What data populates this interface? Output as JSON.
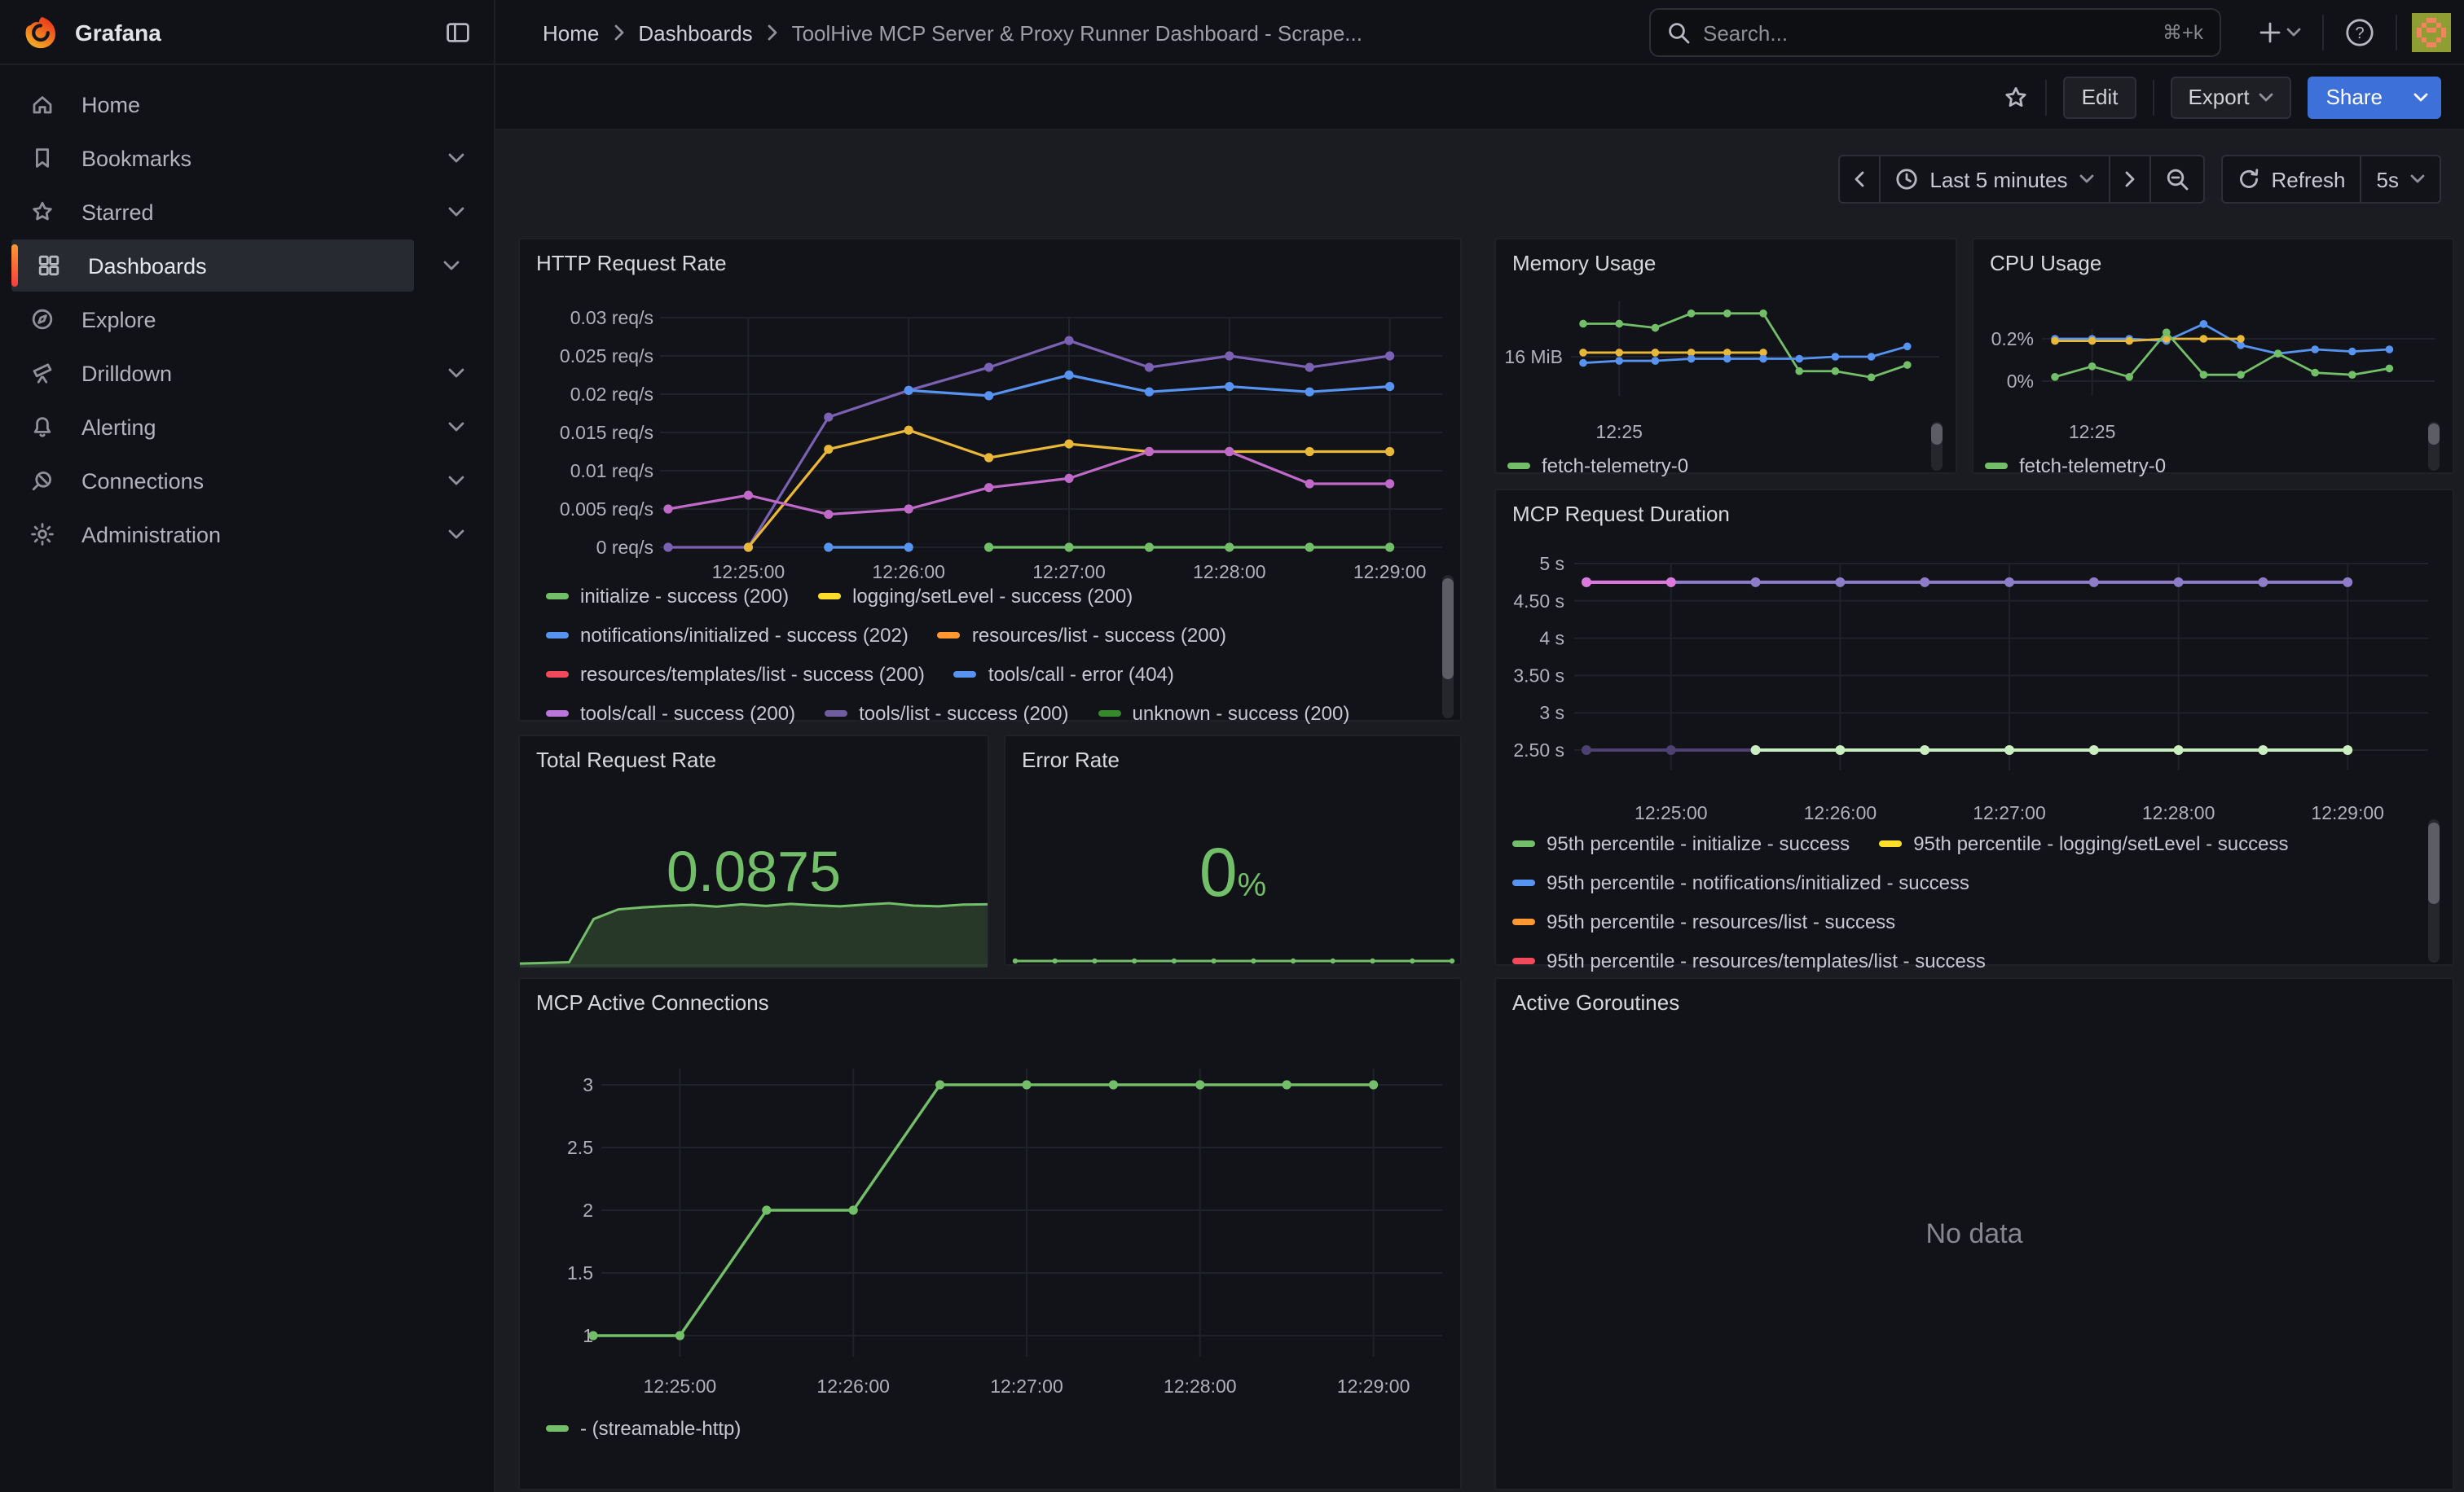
{
  "app": {
    "brand": "Grafana"
  },
  "breadcrumb": {
    "items": [
      "Home",
      "Dashboards",
      "ToolHive MCP Server & Proxy Runner Dashboard - Scrape..."
    ]
  },
  "search": {
    "placeholder": "Search...",
    "shortcut": "⌘+k"
  },
  "sidebar": {
    "items": [
      {
        "label": "Home",
        "expandable": false
      },
      {
        "label": "Bookmarks",
        "expandable": true
      },
      {
        "label": "Starred",
        "expandable": true
      },
      {
        "label": "Dashboards",
        "expandable": true,
        "active": true
      },
      {
        "label": "Explore",
        "expandable": false
      },
      {
        "label": "Drilldown",
        "expandable": true
      },
      {
        "label": "Alerting",
        "expandable": true
      },
      {
        "label": "Connections",
        "expandable": true
      },
      {
        "label": "Administration",
        "expandable": true
      }
    ]
  },
  "toolbar": {
    "edit": "Edit",
    "export": "Export",
    "share": "Share"
  },
  "timebar": {
    "range_label": "Last 5 minutes",
    "refresh_label": "Refresh",
    "interval": "5s"
  },
  "panels": {
    "http": "HTTP Request Rate",
    "memory": "Memory Usage",
    "cpu": "CPU Usage",
    "duration": "MCP Request Duration",
    "total": "Total Request Rate",
    "error": "Error Rate",
    "connections": "MCP Active Connections",
    "goroutines": "Active Goroutines",
    "no_data": "No data"
  },
  "stats": {
    "total_request_rate": "0.0875",
    "error_rate_value": "0",
    "error_rate_unit": "%"
  },
  "legends": {
    "http": {
      "rows": [
        [
          {
            "color": "#73BF69",
            "label": "initialize - success (200)"
          },
          {
            "color": "#FADE2A",
            "label": "logging/setLevel - success (200)"
          }
        ],
        [
          {
            "color": "#5794F2",
            "label": "notifications/initialized - success (202)"
          },
          {
            "color": "#FF9830",
            "label": "resources/list - success (200)"
          }
        ],
        [
          {
            "color": "#F2495C",
            "label": "resources/templates/list - success (200)"
          },
          {
            "color": "#5794F2",
            "label": "tools/call - error (404)"
          }
        ],
        [
          {
            "color": "#B877D9",
            "label": "tools/call - success (200)"
          },
          {
            "color": "#705DA0",
            "label": "tools/list - success (200)"
          },
          {
            "color": "#37872D",
            "label": "unknown - success (200)"
          }
        ]
      ]
    },
    "memory": {
      "rows": [
        [
          {
            "color": "#73BF69",
            "label": "fetch-telemetry-0"
          }
        ]
      ]
    },
    "cpu": {
      "rows": [
        [
          {
            "color": "#73BF69",
            "label": "fetch-telemetry-0"
          }
        ]
      ]
    },
    "duration": {
      "rows": [
        [
          {
            "color": "#73BF69",
            "label": "95th percentile - initialize - success"
          },
          {
            "color": "#FADE2A",
            "label": "95th percentile - logging/setLevel - success"
          }
        ],
        [
          {
            "color": "#5794F2",
            "label": "95th percentile - notifications/initialized - success"
          }
        ],
        [
          {
            "color": "#FF9830",
            "label": "95th percentile - resources/list - success"
          }
        ],
        [
          {
            "color": "#F2495C",
            "label": "95th percentile - resources/templates/list - success"
          }
        ]
      ]
    },
    "connections": {
      "rows": [
        [
          {
            "color": "#73BF69",
            "label": "- (streamable-http)"
          }
        ]
      ]
    }
  },
  "chart_data": [
    {
      "type": "line",
      "title": "HTTP Request Rate",
      "x_ticks": [
        "12:25:00",
        "12:26:00",
        "12:27:00",
        "12:28:00",
        "12:29:00"
      ],
      "y_ticks": [
        "0 req/s",
        "0.005 req/s",
        "0.01 req/s",
        "0.015 req/s",
        "0.02 req/s",
        "0.025 req/s",
        "0.03 req/s"
      ],
      "ylim": [
        0,
        0.03
      ],
      "x_start": "12:24:30",
      "x_step_seconds": 30,
      "ylabel": "req/s",
      "series": [
        {
          "label": "violet line",
          "color": "#7B61B3",
          "values": [
            0,
            0,
            0.017,
            0.0205,
            0.0235,
            0.027,
            0.0235,
            0.025,
            0.0235,
            0.025
          ]
        },
        {
          "label": "yellow line",
          "color": "#EAB839",
          "values": [
            null,
            0,
            0.0128,
            0.0153,
            0.0117,
            0.0135,
            0.0125,
            0.0125,
            0.0125,
            0.0125
          ]
        },
        {
          "label": "magenta line",
          "color": "#C069C9",
          "values": [
            0.005,
            0.0068,
            0.0043,
            0.005,
            0.0078,
            0.009,
            0.0125,
            0.0125,
            0.0083,
            0.0083
          ]
        },
        {
          "label": "blue line",
          "color": "#5794F2",
          "values": [
            null,
            null,
            null,
            0.0205,
            0.0198,
            0.0225,
            0.0203,
            0.021,
            0.0203,
            0.021
          ]
        },
        {
          "label": "blue zero points",
          "color": "#5794F2",
          "values": [
            null,
            null,
            0,
            0,
            null,
            null,
            null,
            null,
            null,
            null
          ]
        },
        {
          "label": "green zero line",
          "color": "#73BF69",
          "values": [
            null,
            null,
            null,
            null,
            0,
            0,
            0,
            0,
            0,
            0
          ]
        }
      ]
    },
    {
      "type": "line",
      "title": "Memory Usage",
      "unit": "MiB",
      "x_ticks": [
        "12:25"
      ],
      "y_ticks": [
        "16 MiB"
      ],
      "x_step_seconds": 30,
      "series": [
        {
          "label": "fetch-telemetry-0 (green)",
          "color": "#73BF69",
          "values": [
            17.6,
            17.6,
            17.4,
            18.1,
            18.1,
            18.1,
            15.3,
            15.3,
            15.0,
            15.6
          ]
        },
        {
          "label": "yellow line",
          "color": "#EAB839",
          "values": [
            16.2,
            16.2,
            16.2,
            16.2,
            16.2,
            16.2,
            null,
            null,
            null,
            null
          ]
        },
        {
          "label": "blue line",
          "color": "#5794F2",
          "values": [
            15.7,
            15.8,
            15.8,
            15.9,
            15.9,
            15.9,
            15.9,
            16.0,
            16.0,
            16.5
          ]
        }
      ]
    },
    {
      "type": "line",
      "title": "CPU Usage",
      "unit": "%",
      "x_ticks": [
        "12:25"
      ],
      "y_ticks": [
        "0.2%",
        "0%"
      ],
      "x_step_seconds": 30,
      "series": [
        {
          "label": "blue line",
          "color": "#5794F2",
          "values": [
            0.2,
            0.2,
            0.2,
            0.19,
            0.27,
            0.17,
            0.13,
            0.15,
            0.14,
            0.15
          ]
        },
        {
          "label": "yellow line",
          "color": "#EAB839",
          "values": [
            0.19,
            0.19,
            0.19,
            0.2,
            0.2,
            0.2,
            null,
            null,
            null,
            null
          ]
        },
        {
          "label": "fetch-telemetry-0 (green)",
          "color": "#73BF69",
          "values": [
            0.02,
            0.07,
            0.02,
            0.23,
            0.03,
            0.03,
            0.13,
            0.04,
            0.03,
            0.06
          ]
        }
      ]
    },
    {
      "type": "line",
      "title": "MCP Request Duration",
      "unit": "s",
      "x_ticks": [
        "12:25:00",
        "12:26:00",
        "12:27:00",
        "12:28:00",
        "12:29:00"
      ],
      "y_ticks": [
        "5 s",
        "4.50 s",
        "4 s",
        "3.50 s",
        "3 s",
        "2.50 s"
      ],
      "ylim": [
        2.5,
        5
      ],
      "x_start": "12:24:30",
      "x_step_seconds": 30,
      "series": [
        {
          "label": "95th percentile upper (purple)",
          "color": "#8E7CC9",
          "values": [
            4.75,
            4.75,
            4.75,
            4.75,
            4.75,
            4.75,
            4.75,
            4.75,
            4.75,
            4.75
          ]
        },
        {
          "label": "upper first segment (pink)",
          "color": "#DD79DD",
          "values": [
            4.75,
            4.75,
            null,
            null,
            null,
            null,
            null,
            null,
            null,
            null
          ]
        },
        {
          "label": "lower first segment (dark purple)",
          "color": "#4E4070",
          "values": [
            2.5,
            2.5,
            2.5,
            null,
            null,
            null,
            null,
            null,
            null,
            null
          ]
        },
        {
          "label": "95th percentile lower (light green)",
          "color": "#C9EFC0",
          "values": [
            null,
            null,
            2.5,
            2.5,
            2.5,
            2.5,
            2.5,
            2.5,
            2.5,
            2.5
          ]
        }
      ]
    },
    {
      "type": "area",
      "title": "Total Request Rate",
      "stat": "0.0875",
      "color": "#73BF69",
      "values": [
        0.001,
        0.002,
        0.003,
        0.066,
        0.08,
        0.083,
        0.085,
        0.0865,
        0.084,
        0.0875,
        0.085,
        0.088,
        0.086,
        0.0845,
        0.087,
        0.089,
        0.0855,
        0.0845,
        0.087,
        0.0875
      ]
    },
    {
      "type": "area",
      "title": "Error Rate",
      "stat": "0",
      "unit": "%",
      "color": "#73BF69",
      "values": [
        0,
        0,
        0,
        0,
        0,
        0,
        0,
        0,
        0,
        0,
        0,
        0
      ]
    },
    {
      "type": "line",
      "title": "MCP Active Connections",
      "x_ticks": [
        "12:25:00",
        "12:26:00",
        "12:27:00",
        "12:28:00",
        "12:29:00"
      ],
      "y_ticks": [
        "3",
        "2.5",
        "2",
        "1.5",
        "1"
      ],
      "ylim": [
        1,
        3
      ],
      "x_start": "12:24:30",
      "x_step_seconds": 30,
      "series": [
        {
          "label": "- (streamable-http)",
          "color": "#73BF69",
          "values": [
            1,
            1,
            2,
            2,
            3,
            3,
            3,
            3,
            3,
            3
          ]
        }
      ]
    }
  ]
}
